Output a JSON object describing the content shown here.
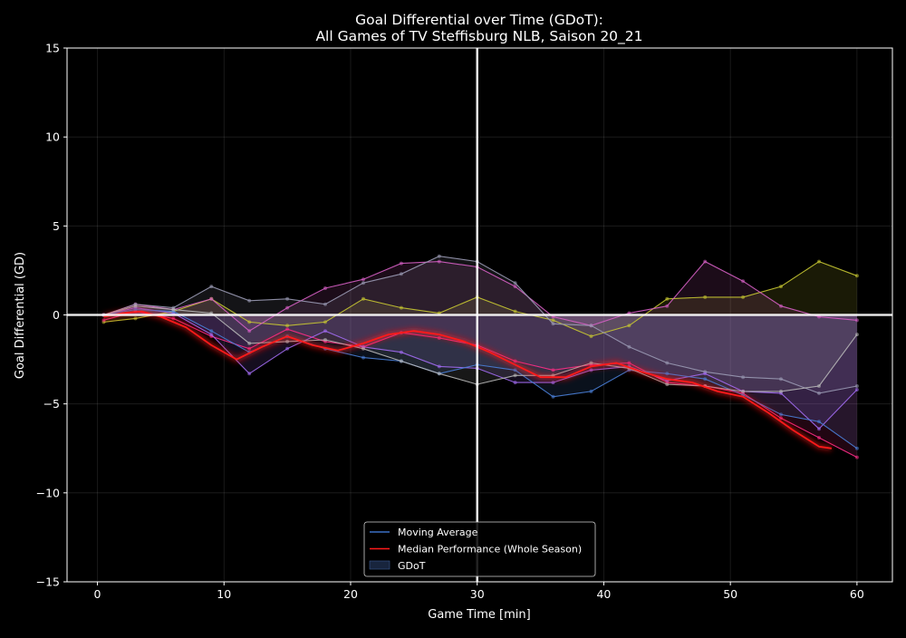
{
  "chart_data": {
    "type": "line",
    "title": "Goal Differential over Time (GDoT):",
    "subtitle": "All Games of TV Steffisburg NLB, Saison 20_21",
    "xlabel": "Game Time [min]",
    "ylabel": "Goal Differential (GD)",
    "xlim": [
      -2.4,
      62.8
    ],
    "ylim": [
      -15,
      15
    ],
    "x_ticks": [
      0,
      10,
      20,
      30,
      40,
      50,
      60
    ],
    "y_ticks": [
      -15,
      -10,
      -5,
      0,
      5,
      10,
      15
    ],
    "x_tick_labels": [
      "0",
      "10",
      "20",
      "30",
      "40",
      "50",
      "60"
    ],
    "y_tick_labels": [
      "−15",
      "−10",
      "−5",
      "0",
      "5",
      "10",
      "15"
    ],
    "grid": true,
    "reference_lines": {
      "x": 30,
      "y": 0
    },
    "legend": {
      "placement": "lower-center",
      "entries": [
        {
          "label": "Moving Average",
          "color": "#3a6fc4",
          "kind": "line"
        },
        {
          "label": "Median Performance (Whole Season)",
          "color": "#ff1a1a",
          "kind": "line"
        },
        {
          "label": "GDoT",
          "color": "#1c2c48",
          "kind": "patch"
        }
      ]
    },
    "median_series": {
      "name": "Median Performance (Whole Season)",
      "color": "#ff1a1a",
      "x": [
        0.5,
        2,
        3.5,
        5,
        7,
        9,
        11,
        13,
        15,
        17,
        19,
        21,
        23,
        25,
        27,
        29,
        31,
        33,
        35,
        37,
        39,
        41,
        43,
        45,
        47,
        49,
        51,
        53,
        55,
        57,
        58
      ],
      "y": [
        -0.1,
        0.1,
        0.2,
        -0.1,
        -0.7,
        -1.7,
        -2.5,
        -1.8,
        -1.2,
        -1.7,
        -2.0,
        -1.6,
        -1.1,
        -0.9,
        -1.1,
        -1.5,
        -2.1,
        -2.8,
        -3.5,
        -3.5,
        -2.9,
        -2.7,
        -3.2,
        -3.6,
        -3.8,
        -4.3,
        -4.6,
        -5.5,
        -6.5,
        -7.4,
        -7.5
      ]
    },
    "series": [
      {
        "color": "#c8c832",
        "x": [
          0.5,
          3,
          6,
          9,
          12,
          15,
          18,
          21,
          24,
          27,
          30,
          33,
          36,
          39,
          42,
          45,
          48,
          51,
          54,
          57,
          60
        ],
        "y": [
          -0.4,
          -0.2,
          0.2,
          0.9,
          -0.4,
          -0.6,
          -0.4,
          0.9,
          0.4,
          0.1,
          1.0,
          0.2,
          -0.3,
          -1.2,
          -0.6,
          0.9,
          1.0,
          1.0,
          1.6,
          3.0,
          2.2
        ]
      },
      {
        "color": "#d65fc4",
        "x": [
          0.5,
          3,
          6,
          9,
          12,
          15,
          18,
          21,
          24,
          27,
          30,
          33,
          36,
          39,
          42,
          45,
          48,
          51,
          54,
          57,
          60
        ],
        "y": [
          0.0,
          0.6,
          0.3,
          0.9,
          -0.9,
          0.4,
          1.5,
          2.0,
          2.9,
          3.0,
          2.7,
          1.6,
          -0.1,
          -0.6,
          0.1,
          0.5,
          3.0,
          1.9,
          0.5,
          -0.1,
          -0.3
        ]
      },
      {
        "color": "#9a9ab4",
        "x": [
          0.5,
          3,
          6,
          9,
          12,
          15,
          18,
          21,
          24,
          27,
          30,
          33,
          36,
          39,
          42,
          45,
          48,
          51,
          54,
          57,
          60
        ],
        "y": [
          0.0,
          0.6,
          0.4,
          1.6,
          0.8,
          0.9,
          0.6,
          1.8,
          2.3,
          3.3,
          3.0,
          1.8,
          -0.5,
          -0.6,
          -1.8,
          -2.7,
          -3.2,
          -3.5,
          -3.6,
          -4.4,
          -4.0
        ]
      },
      {
        "color": "#ff2e88",
        "x": [
          0.5,
          3,
          6,
          9,
          12,
          15,
          18,
          21,
          24,
          27,
          30,
          33,
          36,
          39,
          42,
          45,
          48,
          51,
          54,
          57,
          60
        ],
        "y": [
          -0.3,
          0.2,
          -0.2,
          -1.2,
          -1.9,
          -0.8,
          -1.5,
          -1.8,
          -1.0,
          -1.3,
          -1.7,
          -2.6,
          -3.1,
          -2.8,
          -2.7,
          -3.8,
          -4.0,
          -4.4,
          -5.8,
          -6.9,
          -8.0
        ]
      },
      {
        "color": "#a26cf2",
        "x": [
          0.5,
          3,
          6,
          9,
          12,
          15,
          18,
          21,
          24,
          27,
          30,
          33,
          36,
          39,
          42,
          45,
          48,
          51,
          54,
          57,
          60
        ],
        "y": [
          0.0,
          0.4,
          0.1,
          -1.1,
          -3.3,
          -1.9,
          -0.9,
          -1.8,
          -2.1,
          -2.9,
          -3.0,
          -3.8,
          -3.8,
          -3.1,
          -2.9,
          -3.7,
          -3.3,
          -4.3,
          -4.4,
          -6.4,
          -4.2
        ]
      },
      {
        "color": "#4a80d8",
        "x": [
          0.5,
          3,
          6,
          9,
          12,
          15,
          18,
          21,
          24,
          27,
          30,
          33,
          36,
          39,
          42,
          45,
          48,
          51,
          54,
          57,
          60
        ],
        "y": [
          0.0,
          0.3,
          0.2,
          -0.9,
          -2.1,
          -1.2,
          -1.9,
          -2.4,
          -2.6,
          -3.3,
          -2.8,
          -3.1,
          -4.6,
          -4.3,
          -3.1,
          -3.3,
          -3.6,
          -4.5,
          -5.6,
          -6.0,
          -7.5
        ]
      },
      {
        "color": "#b8b8b8",
        "x": [
          0.5,
          3,
          6,
          9,
          12,
          15,
          18,
          21,
          24,
          27,
          30,
          33,
          36,
          39,
          42,
          45,
          48,
          51,
          54,
          57,
          60
        ],
        "y": [
          0.0,
          0.5,
          0.3,
          0.1,
          -1.6,
          -1.5,
          -1.4,
          -1.9,
          -2.6,
          -3.3,
          -3.9,
          -3.4,
          -3.4,
          -2.7,
          -3.0,
          -3.9,
          -4.0,
          -4.3,
          -4.3,
          -4.0,
          -1.1
        ]
      }
    ]
  }
}
